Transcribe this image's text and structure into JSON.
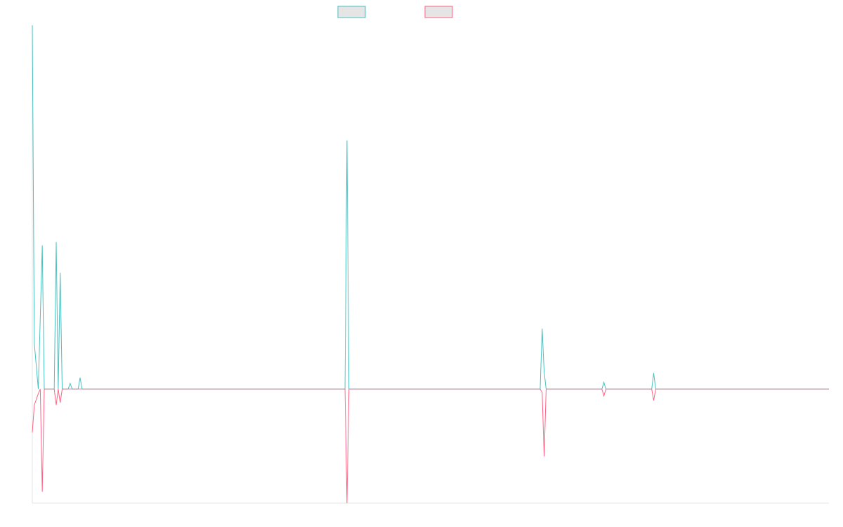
{
  "chart_data": {
    "type": "line",
    "title": "",
    "xlabel": "",
    "ylabel": "",
    "legend": {
      "placement": "top-center",
      "items": [
        {
          "series_index": 0,
          "label": ""
        },
        {
          "series_index": 1,
          "label": ""
        }
      ]
    },
    "grid": false,
    "x_axis_visible": true,
    "y_axis_visible": true,
    "tick_labels_visible": false,
    "xlim": [
      0,
      200
    ],
    "ylim": [
      -100,
      319
    ],
    "colors": {
      "series_a": "#4bc0c0",
      "series_b": "#ff6384",
      "legend_fill": "#e5e5e5",
      "axis": "#e5e5e5"
    },
    "series": [
      {
        "color": "#4bc0c0",
        "fill": "#e5e5e5",
        "points": [
          [
            0,
            319
          ],
          [
            0.5,
            40
          ],
          [
            1.5,
            0
          ],
          [
            2.5,
            126
          ],
          [
            3,
            0
          ],
          [
            5.5,
            0
          ],
          [
            6,
            129
          ],
          [
            6.5,
            0
          ],
          [
            7,
            102
          ],
          [
            7.5,
            0
          ],
          [
            9,
            0
          ],
          [
            9.5,
            5
          ],
          [
            10,
            0
          ],
          [
            11.5,
            0
          ],
          [
            12,
            10
          ],
          [
            12.5,
            0
          ],
          [
            78.5,
            0
          ],
          [
            79,
            218
          ],
          [
            79.5,
            0
          ],
          [
            127.5,
            0
          ],
          [
            128,
            53
          ],
          [
            128.5,
            15
          ],
          [
            129,
            0
          ],
          [
            143,
            0
          ],
          [
            143.5,
            6
          ],
          [
            144,
            0
          ],
          [
            155.5,
            0
          ],
          [
            156,
            14
          ],
          [
            156.5,
            0
          ],
          [
            200,
            0
          ]
        ]
      },
      {
        "color": "#ff6384",
        "fill": "#e5e5e5",
        "points": [
          [
            0,
            -38
          ],
          [
            0.5,
            -14
          ],
          [
            1.5,
            -4
          ],
          [
            2,
            0
          ],
          [
            2.5,
            -90
          ],
          [
            3,
            0
          ],
          [
            5.5,
            0
          ],
          [
            6,
            -14
          ],
          [
            6.5,
            0
          ],
          [
            7,
            -12
          ],
          [
            7.5,
            0
          ],
          [
            78.5,
            0
          ],
          [
            79,
            -100
          ],
          [
            79.5,
            0
          ],
          [
            127.5,
            0
          ],
          [
            128,
            -3
          ],
          [
            128.5,
            -59
          ],
          [
            129,
            0
          ],
          [
            143,
            0
          ],
          [
            143.5,
            -6
          ],
          [
            144,
            0
          ],
          [
            155.5,
            0
          ],
          [
            156,
            -10
          ],
          [
            156.5,
            0
          ],
          [
            200,
            0
          ]
        ]
      }
    ]
  }
}
